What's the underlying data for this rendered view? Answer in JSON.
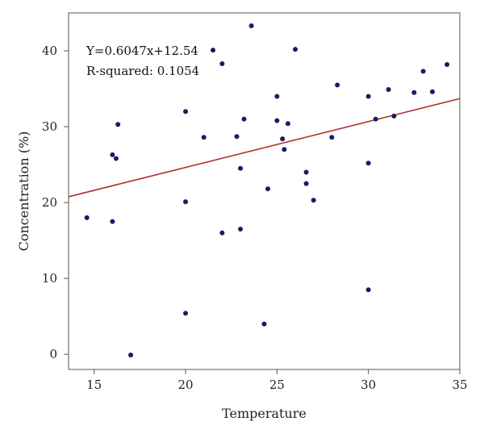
{
  "chart_data": {
    "type": "scatter",
    "xlabel": "Temperature",
    "ylabel": "Concentration (%)",
    "xlim": [
      13.6,
      35
    ],
    "ylim": [
      -2,
      45
    ],
    "xticks": [
      15,
      20,
      25,
      30,
      35
    ],
    "yticks": [
      0,
      10,
      20,
      30,
      40
    ],
    "grid": false,
    "marker_color": "#1a1a66",
    "line_color": "#b03030",
    "annotations": [
      "Y=0.6047x+12.54",
      "R-squared: 0.1054"
    ],
    "regression": {
      "slope": 0.6047,
      "intercept": 12.54
    },
    "points": [
      {
        "x": 14.6,
        "y": 18.0
      },
      {
        "x": 16.0,
        "y": 17.5
      },
      {
        "x": 16.0,
        "y": 26.3
      },
      {
        "x": 16.2,
        "y": 25.8
      },
      {
        "x": 16.3,
        "y": 30.3
      },
      {
        "x": 17.0,
        "y": -0.1
      },
      {
        "x": 20.0,
        "y": 32.0
      },
      {
        "x": 20.0,
        "y": 20.1
      },
      {
        "x": 20.0,
        "y": 5.4
      },
      {
        "x": 21.0,
        "y": 28.6
      },
      {
        "x": 21.5,
        "y": 40.1
      },
      {
        "x": 22.0,
        "y": 38.3
      },
      {
        "x": 22.0,
        "y": 16.0
      },
      {
        "x": 22.8,
        "y": 28.7
      },
      {
        "x": 23.0,
        "y": 24.5
      },
      {
        "x": 23.0,
        "y": 16.5
      },
      {
        "x": 23.2,
        "y": 31.0
      },
      {
        "x": 23.6,
        "y": 43.3
      },
      {
        "x": 24.3,
        "y": 4.0
      },
      {
        "x": 24.5,
        "y": 21.8
      },
      {
        "x": 25.0,
        "y": 34.0
      },
      {
        "x": 25.0,
        "y": 30.8
      },
      {
        "x": 25.3,
        "y": 28.4
      },
      {
        "x": 25.4,
        "y": 27.0
      },
      {
        "x": 25.6,
        "y": 30.4
      },
      {
        "x": 26.0,
        "y": 40.2
      },
      {
        "x": 26.6,
        "y": 24.0
      },
      {
        "x": 26.6,
        "y": 22.5
      },
      {
        "x": 27.0,
        "y": 20.3
      },
      {
        "x": 28.0,
        "y": 28.6
      },
      {
        "x": 28.3,
        "y": 35.5
      },
      {
        "x": 30.0,
        "y": 34.0
      },
      {
        "x": 30.0,
        "y": 25.2
      },
      {
        "x": 30.0,
        "y": 8.5
      },
      {
        "x": 30.4,
        "y": 31.0
      },
      {
        "x": 31.1,
        "y": 34.9
      },
      {
        "x": 31.4,
        "y": 31.4
      },
      {
        "x": 32.5,
        "y": 34.5
      },
      {
        "x": 33.0,
        "y": 37.3
      },
      {
        "x": 33.5,
        "y": 34.6
      },
      {
        "x": 34.3,
        "y": 38.2
      }
    ]
  }
}
